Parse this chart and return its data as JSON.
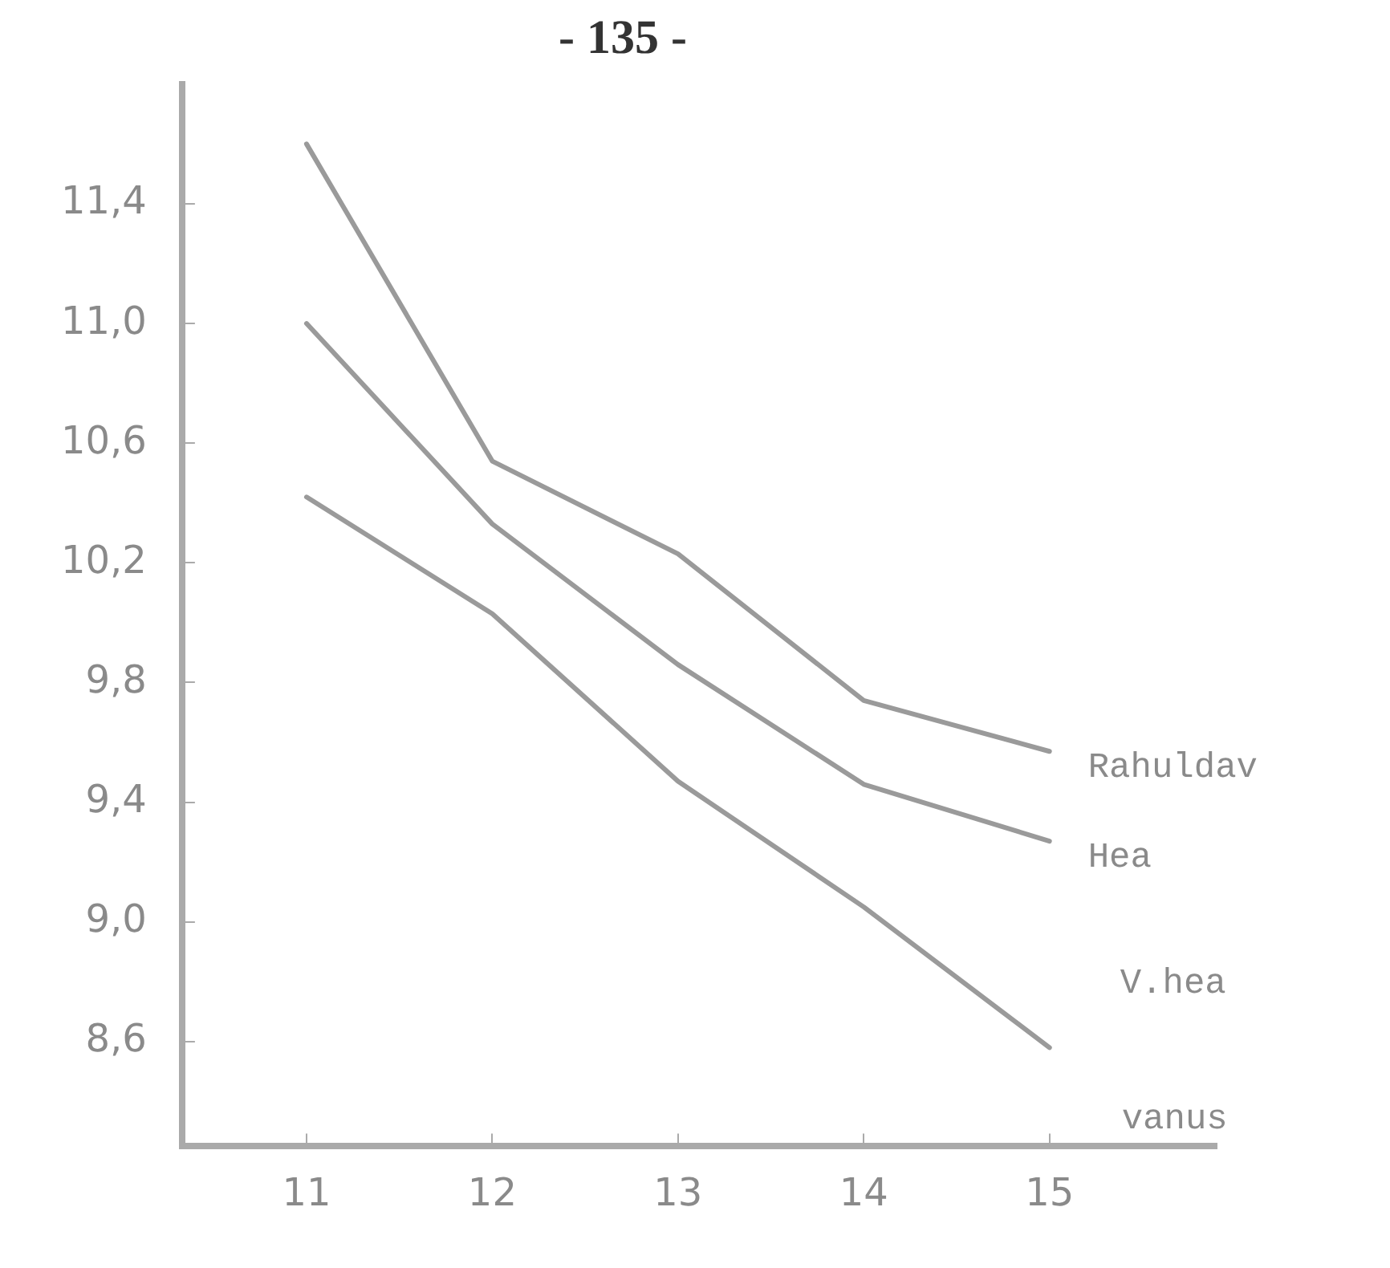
{
  "chart_data": {
    "type": "line",
    "annotations": [
      "- 135 -"
    ],
    "xlabel": "vanus",
    "x": [
      11,
      12,
      13,
      14,
      15
    ],
    "series": [
      {
        "name": "Rahuldav",
        "color": "#9a9a9a",
        "values": [
          11.6,
          10.54,
          10.23,
          9.74,
          9.57
        ]
      },
      {
        "name": "Hea",
        "color": "#9a9a9a",
        "values": [
          11.0,
          10.33,
          9.86,
          9.46,
          9.27
        ]
      },
      {
        "name": "V.hea",
        "color": "#9a9a9a",
        "values": [
          10.42,
          10.03,
          9.47,
          9.05,
          8.58
        ]
      }
    ],
    "xlim": [
      10.33,
      15.9
    ],
    "xticks": [
      11,
      12,
      13,
      14,
      15
    ],
    "ylim": [
      8.25,
      11.8
    ],
    "yticks": [
      {
        "value": 8.6,
        "label": "8,6"
      },
      {
        "value": 9.0,
        "label": "9,0"
      },
      {
        "value": 9.4,
        "label": "9,4"
      },
      {
        "value": 9.8,
        "label": "9,8"
      },
      {
        "value": 10.2,
        "label": "10,2"
      },
      {
        "value": 10.6,
        "label": "10,6"
      },
      {
        "value": 11.0,
        "label": "11,0"
      },
      {
        "value": 11.4,
        "label": "11,4"
      }
    ],
    "legend": false,
    "marker": "none",
    "line_style": "solid"
  }
}
